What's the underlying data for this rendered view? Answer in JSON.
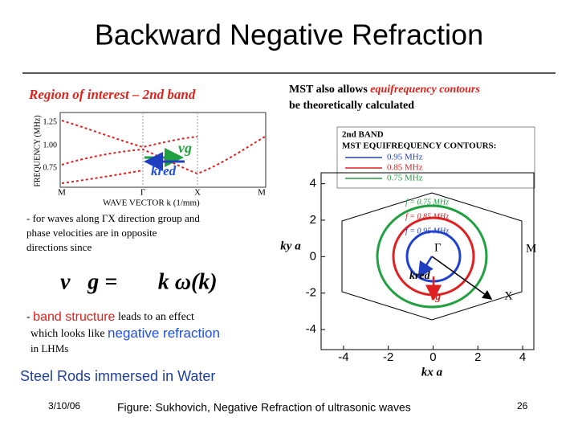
{
  "title": "Backward Negative Refraction",
  "left_panel": {
    "heading": "Region of interest – 2nd band",
    "band_plot": {
      "ylabel": "FREQUENCY (MHz)",
      "yticks": [
        "1.25",
        "1.00",
        "0.75"
      ],
      "xticks": [
        "M",
        "Γ",
        "X",
        "M"
      ],
      "xlabel": "WAVE VECTOR k (1/mm)",
      "vg_label": "vg",
      "k_label": "kred"
    },
    "bullet1": [
      "- for waves along ΓX direction group and",
      "phase velocities are in opposite",
      "directions since"
    ],
    "equation": "v⃗g = ∇⃗k ω(k)",
    "bullet2": [
      [
        "- ",
        "band structure",
        " leads to an effect"
      ],
      [
        "which looks like ",
        "negative refraction"
      ],
      [
        "in LHMs"
      ]
    ]
  },
  "right_panel": {
    "intro": [
      [
        "MST also allows ",
        "equifrequency contours"
      ],
      [
        "be theoretically calculated"
      ]
    ],
    "legend": {
      "title": "2nd BAND",
      "subtitle": "MST EQUIFREQUENCY CONTOURS:",
      "entries": [
        {
          "label": "0.95 MHz",
          "color": "#2040d0"
        },
        {
          "label": "0.85 MHz",
          "color": "#e02020"
        },
        {
          "label": "0.75 MHz",
          "color": "#20a040"
        }
      ]
    },
    "contour_plot": {
      "xlim": [
        -5,
        4.5
      ],
      "ylim": [
        -5.1,
        4.6
      ],
      "xticks": [
        -4,
        -2,
        0,
        2,
        4
      ],
      "yticks": [
        4,
        2,
        0,
        -2,
        -4
      ],
      "xlabel": "kx a",
      "ylabel": "ky a",
      "contour_labels": [
        "f = 0.75 MHz",
        "f = 0.85 MHz",
        "f = 0.95 MHz"
      ],
      "points": [
        "Γ",
        "M",
        "X"
      ],
      "k_label": "kred",
      "vg_label": "vg"
    }
  },
  "caption_left": "Steel Rods immersed in Water",
  "footer": {
    "date": "3/10/06",
    "caption": "Figure: Sukhovich, Negative Refraction of ultrasonic waves",
    "page": "26"
  }
}
